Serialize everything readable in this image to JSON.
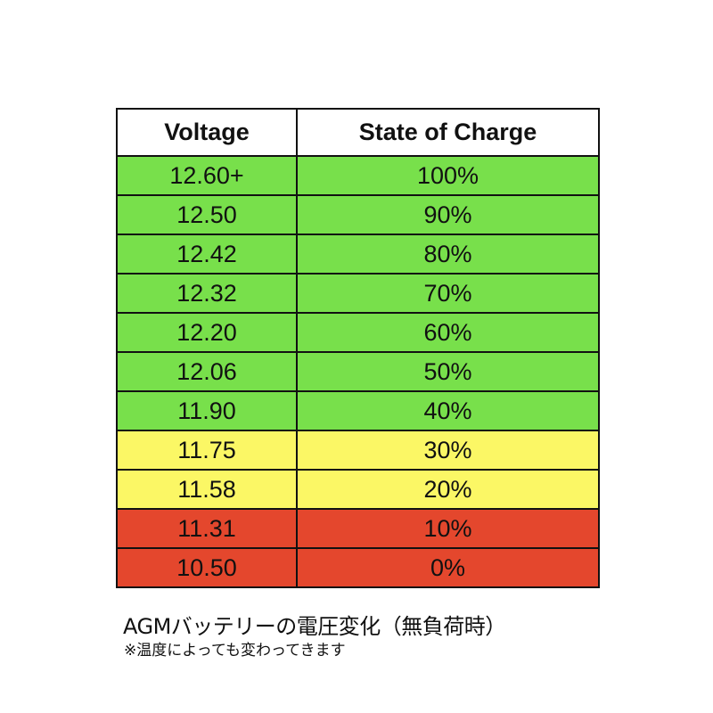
{
  "table": {
    "headers": {
      "voltage": "Voltage",
      "state_of_charge": "State of Charge"
    },
    "rows": [
      {
        "voltage": "12.60+",
        "soc": "100%",
        "zone": "green"
      },
      {
        "voltage": "12.50",
        "soc": "90%",
        "zone": "green"
      },
      {
        "voltage": "12.42",
        "soc": "80%",
        "zone": "green"
      },
      {
        "voltage": "12.32",
        "soc": "70%",
        "zone": "green"
      },
      {
        "voltage": "12.20",
        "soc": "60%",
        "zone": "green"
      },
      {
        "voltage": "12.06",
        "soc": "50%",
        "zone": "green"
      },
      {
        "voltage": "11.90",
        "soc": "40%",
        "zone": "green"
      },
      {
        "voltage": "11.75",
        "soc": "30%",
        "zone": "yellow"
      },
      {
        "voltage": "11.58",
        "soc": "20%",
        "zone": "yellow"
      },
      {
        "voltage": "11.31",
        "soc": "10%",
        "zone": "red"
      },
      {
        "voltage": "10.50",
        "soc": "0%",
        "zone": "red"
      }
    ]
  },
  "colors": {
    "green": "#78e04b",
    "yellow": "#fbf765",
    "red": "#e4472d",
    "border": "#111111",
    "text": "#111111"
  },
  "caption": {
    "title": "AGMバッテリーの電圧変化（無負荷時）",
    "note": "※温度によっても変わってきます"
  }
}
